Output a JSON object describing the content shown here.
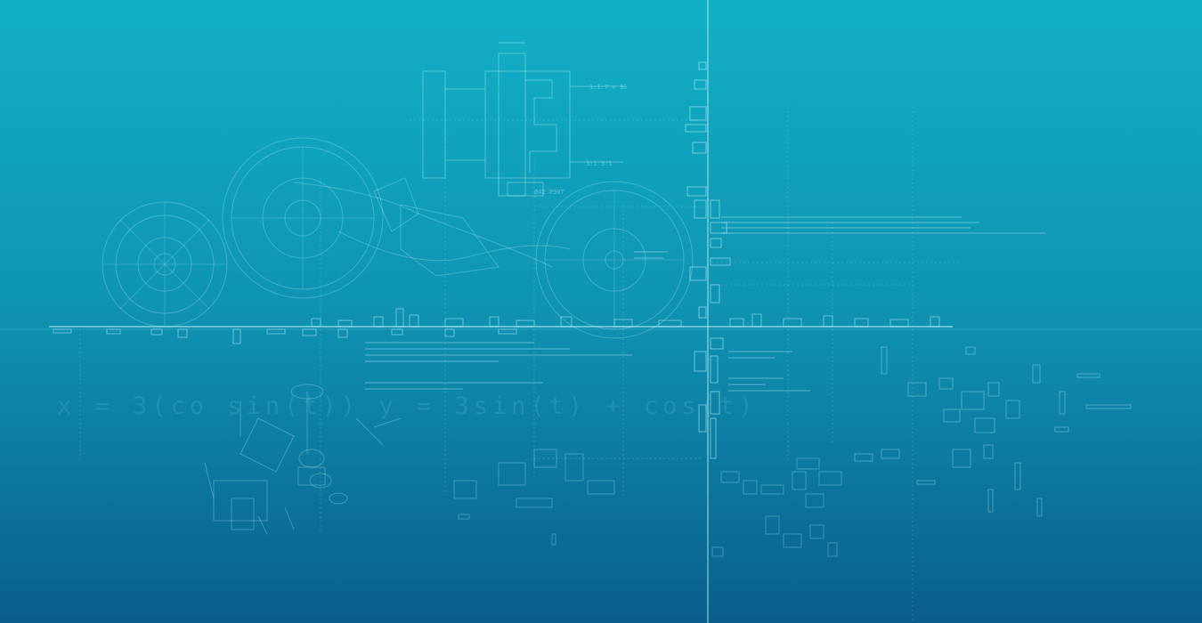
{
  "wallpaper": {
    "palette": {
      "top": "#11adc3",
      "mid": "#0f91b1",
      "bottom": "#0a5f8e",
      "line": "#b8f0f7"
    },
    "formula": "x = 3(co sin(t)) y = 3sin(t) + cos(t)",
    "callouts": [
      "1:1:7 x 36",
      "3:1 3:1",
      "Ø42 P90T"
    ]
  }
}
